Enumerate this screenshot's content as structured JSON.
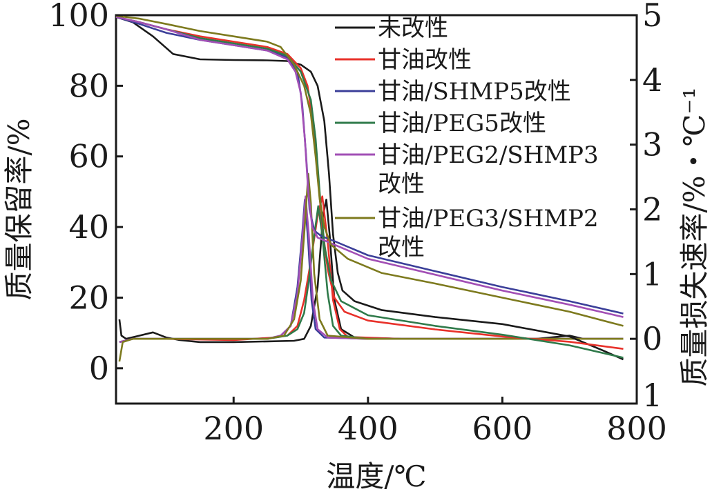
{
  "chart_data": {
    "type": "line",
    "xlabel": "温度/℃",
    "ylabel_left": "质量保留率/%",
    "ylabel_right": "质量损失速率/%・℃⁻¹",
    "xlim": [
      25,
      800
    ],
    "ylim_left": [
      -10,
      100
    ],
    "ylim_right": [
      -1,
      5
    ],
    "x_ticks": [
      200,
      400,
      600,
      800
    ],
    "x_tick_labels": [
      "200",
      "400",
      "600",
      "800"
    ],
    "y_ticks_left": [
      0,
      20,
      40,
      60,
      80,
      100
    ],
    "y_tick_labels_left": [
      "0",
      "20",
      "40",
      "60",
      "80",
      "100"
    ],
    "y_ticks_right": [
      0,
      1,
      2,
      3,
      4,
      5
    ],
    "y_tick_labels_right": [
      "0",
      "1",
      "2",
      "3",
      "4",
      "5"
    ],
    "right_axis_bottom_label": "1",
    "grid": false,
    "legend_position": "top-right",
    "legend": [
      {
        "label": "未改性",
        "color": "#1a1a1a"
      },
      {
        "label": "甘油改性",
        "color": "#e8312a"
      },
      {
        "label": "甘油/SHMP5改性",
        "color": "#3b3f99"
      },
      {
        "label": "甘油/PEG5改性",
        "color": "#2f7a4a"
      },
      {
        "label": "甘油/PEG2/SHMP3\n改性",
        "color": "#a24fb5"
      },
      {
        "label": "甘油/PEG3/SHMP2\n改性",
        "color": "#7d7a1e"
      }
    ],
    "tg_series": [
      {
        "name": "未改性",
        "color": "#1a1a1a",
        "points": [
          [
            25,
            99.5
          ],
          [
            50,
            98
          ],
          [
            80,
            94
          ],
          [
            110,
            89
          ],
          [
            150,
            87.5
          ],
          [
            200,
            87.3
          ],
          [
            250,
            87.2
          ],
          [
            280,
            87
          ],
          [
            300,
            86
          ],
          [
            315,
            84
          ],
          [
            325,
            80
          ],
          [
            335,
            70
          ],
          [
            342,
            55
          ],
          [
            348,
            38
          ],
          [
            355,
            27
          ],
          [
            362,
            22
          ],
          [
            380,
            19
          ],
          [
            420,
            16.5
          ],
          [
            500,
            14.5
          ],
          [
            600,
            12.5
          ],
          [
            700,
            9
          ],
          [
            750,
            5
          ],
          [
            780,
            2.5
          ]
        ]
      },
      {
        "name": "甘油改性",
        "color": "#e8312a",
        "points": [
          [
            25,
            99.5
          ],
          [
            60,
            98
          ],
          [
            100,
            96
          ],
          [
            150,
            94
          ],
          [
            200,
            92.5
          ],
          [
            250,
            91
          ],
          [
            280,
            89
          ],
          [
            300,
            85
          ],
          [
            310,
            80
          ],
          [
            318,
            70
          ],
          [
            325,
            55
          ],
          [
            332,
            40
          ],
          [
            340,
            28
          ],
          [
            350,
            20
          ],
          [
            365,
            16
          ],
          [
            400,
            13.5
          ],
          [
            500,
            11
          ],
          [
            600,
            9
          ],
          [
            700,
            7.5
          ],
          [
            780,
            5.5
          ]
        ]
      },
      {
        "name": "甘油/SHMP5改性",
        "color": "#3b3f99",
        "points": [
          [
            25,
            99.5
          ],
          [
            60,
            97.5
          ],
          [
            100,
            95
          ],
          [
            150,
            93
          ],
          [
            200,
            91.5
          ],
          [
            250,
            90
          ],
          [
            280,
            88
          ],
          [
            295,
            84
          ],
          [
            302,
            75
          ],
          [
            308,
            60
          ],
          [
            313,
            45
          ],
          [
            320,
            39
          ],
          [
            330,
            37.5
          ],
          [
            350,
            36
          ],
          [
            400,
            32
          ],
          [
            500,
            27.5
          ],
          [
            600,
            23
          ],
          [
            700,
            19
          ],
          [
            780,
            15.5
          ]
        ]
      },
      {
        "name": "甘油/PEG5改性",
        "color": "#2f7a4a",
        "points": [
          [
            25,
            99.5
          ],
          [
            60,
            98
          ],
          [
            100,
            96
          ],
          [
            150,
            93.5
          ],
          [
            200,
            92
          ],
          [
            250,
            90.5
          ],
          [
            280,
            88.5
          ],
          [
            300,
            84
          ],
          [
            315,
            76
          ],
          [
            322,
            65
          ],
          [
            328,
            50
          ],
          [
            335,
            35
          ],
          [
            345,
            25
          ],
          [
            360,
            19
          ],
          [
            400,
            15
          ],
          [
            500,
            12
          ],
          [
            600,
            9.5
          ],
          [
            700,
            6.5
          ],
          [
            780,
            3
          ]
        ]
      },
      {
        "name": "甘油/PEG2/SHMP3改性",
        "color": "#a24fb5",
        "points": [
          [
            25,
            99.5
          ],
          [
            60,
            98
          ],
          [
            100,
            96
          ],
          [
            150,
            93
          ],
          [
            200,
            91.5
          ],
          [
            250,
            90
          ],
          [
            280,
            87.5
          ],
          [
            292,
            84
          ],
          [
            300,
            78
          ],
          [
            306,
            65
          ],
          [
            311,
            50
          ],
          [
            317,
            40
          ],
          [
            325,
            37
          ],
          [
            350,
            35
          ],
          [
            400,
            31
          ],
          [
            500,
            26.5
          ],
          [
            600,
            22
          ],
          [
            700,
            18
          ],
          [
            780,
            14.5
          ]
        ]
      },
      {
        "name": "甘油/PEG3/SHMP2改性",
        "color": "#7d7a1e",
        "points": [
          [
            25,
            99.8
          ],
          [
            60,
            99
          ],
          [
            100,
            97.5
          ],
          [
            150,
            95.5
          ],
          [
            200,
            94
          ],
          [
            250,
            92.5
          ],
          [
            270,
            91
          ],
          [
            290,
            86
          ],
          [
            305,
            80
          ],
          [
            315,
            72
          ],
          [
            322,
            60
          ],
          [
            328,
            48
          ],
          [
            335,
            40
          ],
          [
            345,
            35
          ],
          [
            370,
            31
          ],
          [
            420,
            27
          ],
          [
            500,
            24
          ],
          [
            600,
            20
          ],
          [
            700,
            16
          ],
          [
            780,
            12
          ]
        ]
      }
    ],
    "dtg_series": [
      {
        "name": "未改性",
        "color": "#1a1a1a",
        "points": [
          [
            30,
            0.3
          ],
          [
            33,
            0.05
          ],
          [
            40,
            0
          ],
          [
            60,
            0.05
          ],
          [
            80,
            0.1
          ],
          [
            100,
            0.02
          ],
          [
            120,
            -0.02
          ],
          [
            150,
            -0.05
          ],
          [
            200,
            -0.05
          ],
          [
            250,
            -0.04
          ],
          [
            290,
            -0.03
          ],
          [
            305,
            0
          ],
          [
            315,
            0.2
          ],
          [
            325,
            0.8
          ],
          [
            333,
            1.9
          ],
          [
            338,
            2.15
          ],
          [
            343,
            1.6
          ],
          [
            350,
            0.6
          ],
          [
            360,
            0.15
          ],
          [
            380,
            0.02
          ],
          [
            450,
            0
          ],
          [
            550,
            0
          ],
          [
            650,
            0
          ],
          [
            680,
            0.03
          ],
          [
            700,
            0.05
          ],
          [
            720,
            0
          ],
          [
            780,
            0
          ]
        ]
      },
      {
        "name": "甘油改性",
        "color": "#e8312a",
        "points": [
          [
            30,
            -0.05
          ],
          [
            50,
            0
          ],
          [
            100,
            0
          ],
          [
            200,
            -0.02
          ],
          [
            260,
            0.02
          ],
          [
            280,
            0.05
          ],
          [
            295,
            0.2
          ],
          [
            305,
            0.6
          ],
          [
            315,
            1.2
          ],
          [
            325,
            1.9
          ],
          [
            332,
            2.2
          ],
          [
            340,
            1.5
          ],
          [
            348,
            0.6
          ],
          [
            358,
            0.15
          ],
          [
            370,
            0.03
          ],
          [
            450,
            0
          ],
          [
            780,
            0
          ]
        ]
      },
      {
        "name": "甘油/SHMP5改性",
        "color": "#3b3f99",
        "points": [
          [
            30,
            -0.05
          ],
          [
            50,
            0
          ],
          [
            150,
            0
          ],
          [
            250,
            0
          ],
          [
            270,
            0.05
          ],
          [
            285,
            0.2
          ],
          [
            295,
            0.8
          ],
          [
            302,
            1.6
          ],
          [
            306,
            2.15
          ],
          [
            311,
            1.5
          ],
          [
            316,
            0.6
          ],
          [
            322,
            0.15
          ],
          [
            335,
            0.02
          ],
          [
            400,
            0
          ],
          [
            780,
            0
          ]
        ]
      },
      {
        "name": "甘油/PEG5改性",
        "color": "#2f7a4a",
        "points": [
          [
            30,
            -0.05
          ],
          [
            50,
            0
          ],
          [
            150,
            0
          ],
          [
            250,
            0
          ],
          [
            280,
            0.05
          ],
          [
            295,
            0.15
          ],
          [
            305,
            0.4
          ],
          [
            312,
            0.9
          ],
          [
            320,
            1.6
          ],
          [
            326,
            2.05
          ],
          [
            332,
            1.6
          ],
          [
            340,
            0.7
          ],
          [
            348,
            0.2
          ],
          [
            360,
            0.05
          ],
          [
            400,
            0
          ],
          [
            780,
            0
          ]
        ]
      },
      {
        "name": "甘油/PEG2/SHMP3改性",
        "color": "#a24fb5",
        "points": [
          [
            30,
            -0.05
          ],
          [
            50,
            0
          ],
          [
            150,
            0
          ],
          [
            250,
            0
          ],
          [
            270,
            0.05
          ],
          [
            285,
            0.2
          ],
          [
            295,
            0.7
          ],
          [
            302,
            1.5
          ],
          [
            307,
            2.2
          ],
          [
            312,
            1.6
          ],
          [
            318,
            0.6
          ],
          [
            325,
            0.15
          ],
          [
            340,
            0.02
          ],
          [
            400,
            0
          ],
          [
            780,
            0
          ]
        ]
      },
      {
        "name": "甘油/PEG3/SHMP2改性",
        "color": "#7d7a1e",
        "points": [
          [
            30,
            -0.35
          ],
          [
            35,
            -0.05
          ],
          [
            50,
            0
          ],
          [
            150,
            0
          ],
          [
            250,
            0
          ],
          [
            275,
            0.05
          ],
          [
            290,
            0.3
          ],
          [
            300,
            0.9
          ],
          [
            307,
            1.9
          ],
          [
            311,
            2.55
          ],
          [
            315,
            2.1
          ],
          [
            320,
            1.0
          ],
          [
            328,
            0.3
          ],
          [
            340,
            0.05
          ],
          [
            400,
            0
          ],
          [
            780,
            0
          ]
        ]
      }
    ]
  }
}
